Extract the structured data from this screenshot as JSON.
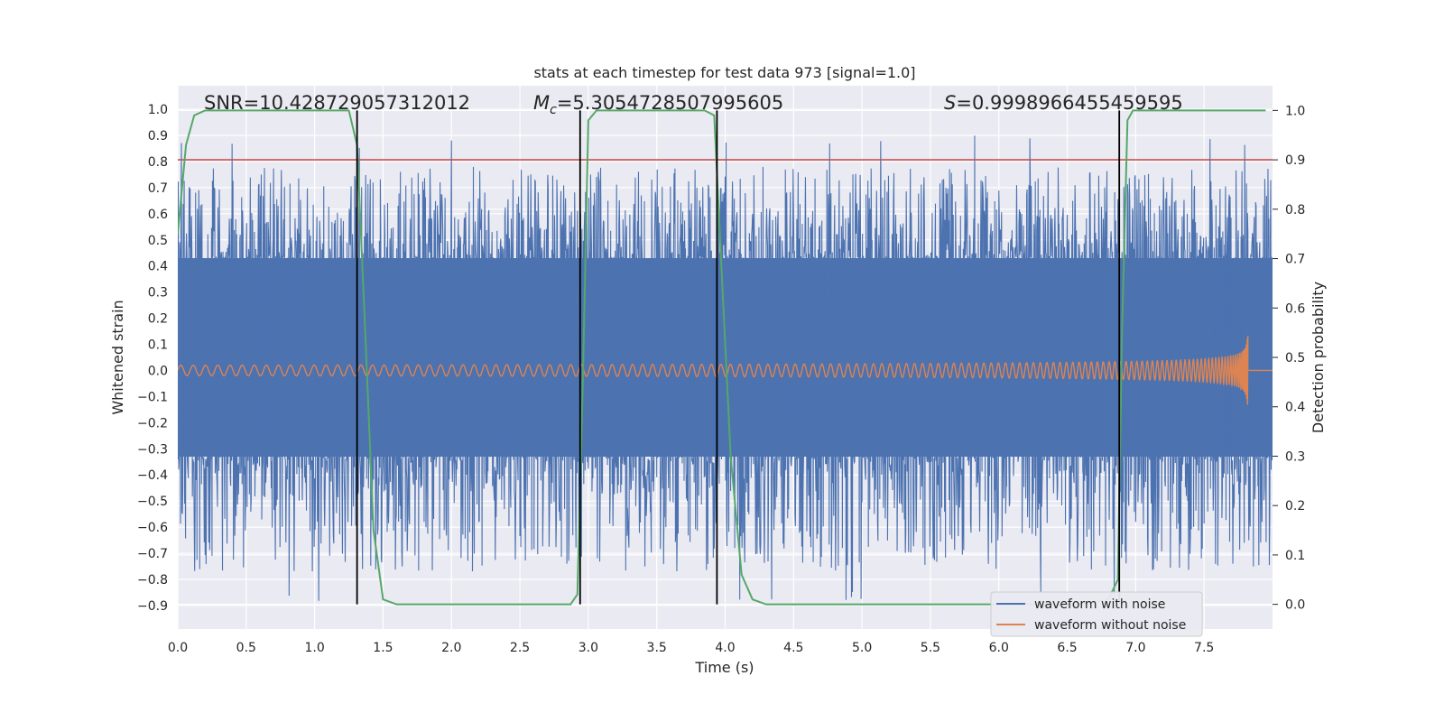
{
  "chart_data": {
    "type": "line",
    "title": "stats at each timestep for test data 973 [signal=1.0]",
    "xlabel": "Time (s)",
    "ylabel": "Whitened strain",
    "y2label": "Detection probability",
    "xlim": [
      0.0,
      8.0
    ],
    "ylim": [
      -0.99,
      1.09
    ],
    "y2lim": [
      -0.05,
      1.05
    ],
    "xticks": [
      "0.0",
      "0.5",
      "1.0",
      "1.5",
      "2.0",
      "2.5",
      "3.0",
      "3.5",
      "4.0",
      "4.5",
      "5.0",
      "5.5",
      "6.0",
      "6.5",
      "7.0",
      "7.5"
    ],
    "yticks": [
      "1.0",
      "0.9",
      "0.8",
      "0.7",
      "0.6",
      "0.5",
      "0.4",
      "0.3",
      "0.2",
      "0.1",
      "0.0",
      "−0.1",
      "−0.2",
      "−0.3",
      "−0.4",
      "−0.5",
      "−0.6",
      "−0.7",
      "−0.8",
      "−0.9"
    ],
    "y2ticks": [
      "1.0",
      "0.9",
      "0.8",
      "0.7",
      "0.6",
      "0.5",
      "0.4",
      "0.3",
      "0.2",
      "0.1",
      "0.0"
    ],
    "grid": true,
    "legend_position": "bottom-right",
    "annotations": {
      "snr": "SNR=10.428729057312012",
      "mc_symbol": "M",
      "mc_sub": "c",
      "mc_value": "=5.3054728507995605",
      "s_symbol": "S",
      "s_value": "=0.9998966455459595"
    },
    "threshold": {
      "y2": 0.9,
      "color": "#c44e52"
    },
    "transitions_x": [
      1.31,
      2.94,
      3.94,
      6.88
    ],
    "probability": {
      "name": "",
      "color": "#55a868",
      "x": [
        0.0,
        0.06,
        0.12,
        0.2,
        0.3,
        0.5,
        0.8,
        1.1,
        1.25,
        1.31,
        1.37,
        1.43,
        1.5,
        1.6,
        1.8,
        2.2,
        2.6,
        2.87,
        2.92,
        2.96,
        3.0,
        3.06,
        3.2,
        3.5,
        3.85,
        3.92,
        3.97,
        4.04,
        4.12,
        4.2,
        4.3,
        4.6,
        5.0,
        5.4,
        5.8,
        6.2,
        6.6,
        6.8,
        6.87,
        6.9,
        6.94,
        6.98,
        7.2,
        7.5,
        7.95
      ],
      "values": [
        0.75,
        0.93,
        0.99,
        1.0,
        1.0,
        1.0,
        1.0,
        1.0,
        1.0,
        0.93,
        0.55,
        0.15,
        0.01,
        0.0,
        0.0,
        0.0,
        0.0,
        0.0,
        0.02,
        0.45,
        0.98,
        1.0,
        1.0,
        1.0,
        1.0,
        0.99,
        0.7,
        0.3,
        0.06,
        0.01,
        0.0,
        0.0,
        0.0,
        0.0,
        0.0,
        0.0,
        0.0,
        0.01,
        0.05,
        0.55,
        0.98,
        1.0,
        1.0,
        1.0,
        1.0
      ]
    },
    "series": [
      {
        "name": "waveform with noise",
        "color": "#4c72b0",
        "band": [
          -0.33,
          0.43
        ],
        "peak_max": 0.9,
        "peak_min": -0.89,
        "samples": 2400
      },
      {
        "name": "waveform without noise",
        "color": "#dd8452",
        "initial_amplitude": 0.02,
        "merger_x": 7.8,
        "merger_amplitude": 0.23,
        "end_x": 7.82,
        "f0": 11.0,
        "f1": 90.0
      }
    ]
  }
}
